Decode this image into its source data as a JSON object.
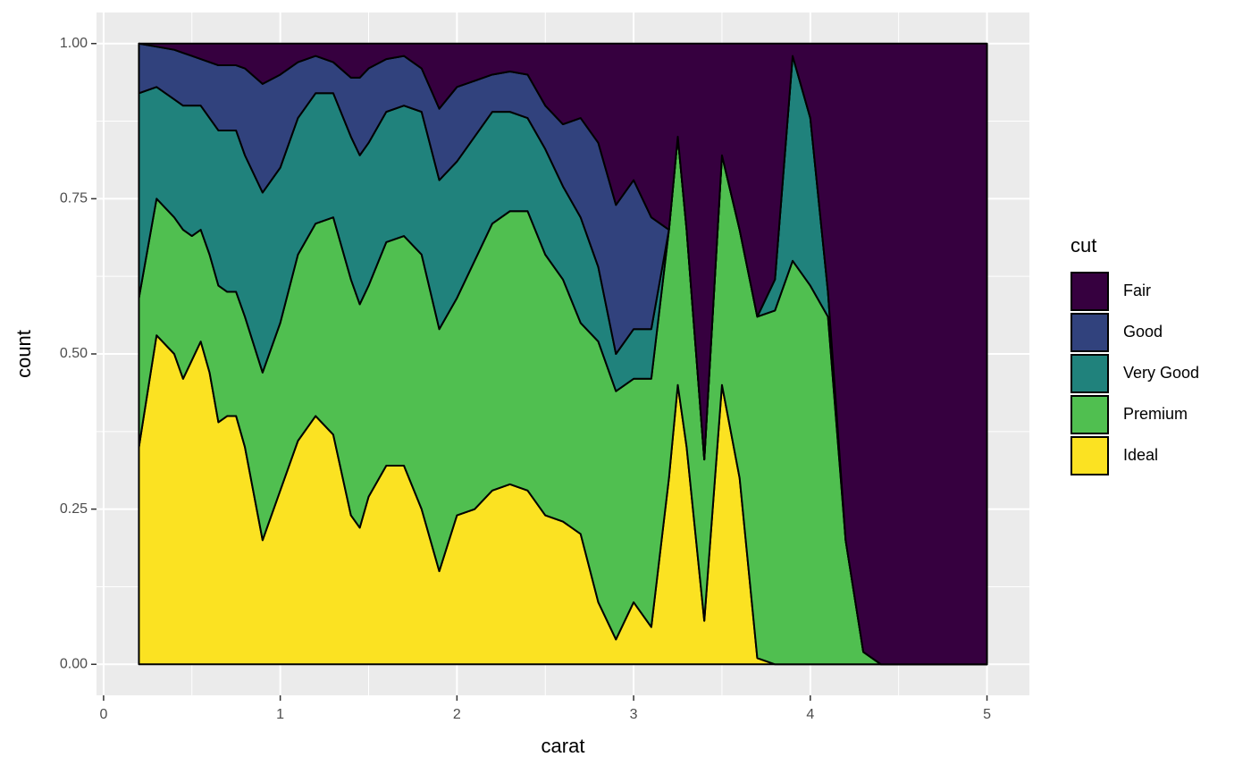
{
  "chart_data": {
    "type": "area",
    "x_label": "carat",
    "y_label": "count",
    "legend_title": "cut",
    "legend_position": "right",
    "grid": true,
    "x": [
      0.2,
      0.3,
      0.4,
      0.45,
      0.5,
      0.55,
      0.6,
      0.65,
      0.7,
      0.75,
      0.8,
      0.9,
      1.0,
      1.1,
      1.2,
      1.3,
      1.4,
      1.45,
      1.5,
      1.6,
      1.7,
      1.8,
      1.9,
      2.0,
      2.1,
      2.2,
      2.3,
      2.4,
      2.5,
      2.6,
      2.7,
      2.8,
      2.9,
      3.0,
      3.1,
      3.2,
      3.25,
      3.3,
      3.4,
      3.5,
      3.6,
      3.7,
      3.8,
      3.9,
      4.0,
      4.1,
      4.2,
      4.3,
      4.4,
      4.6,
      4.8,
      5.0
    ],
    "series": [
      {
        "name": "Fair",
        "color": "#36003f",
        "values": [
          0,
          0.005,
          0.01,
          0.015,
          0.02,
          0.025,
          0.03,
          0.035,
          0.035,
          0.035,
          0.04,
          0.065,
          0.05,
          0.03,
          0.02,
          0.03,
          0.055,
          0.055,
          0.04,
          0.025,
          0.02,
          0.04,
          0.105,
          0.07,
          0.06,
          0.05,
          0.045,
          0.05,
          0.1,
          0.13,
          0.12,
          0.16,
          0.26,
          0.22,
          0.28,
          0.3,
          0.15,
          0.3,
          0.67,
          0.18,
          0.3,
          0.44,
          0.38,
          0.02,
          0.12,
          0.4,
          0.8,
          0.98,
          1,
          1,
          1,
          1
        ]
      },
      {
        "name": "Good",
        "color": "#31427d",
        "values": [
          0.08,
          0.065,
          0.08,
          0.085,
          0.08,
          0.075,
          0.09,
          0.105,
          0.105,
          0.105,
          0.14,
          0.175,
          0.15,
          0.09,
          0.06,
          0.05,
          0.095,
          0.125,
          0.12,
          0.085,
          0.08,
          0.07,
          0.115,
          0.12,
          0.09,
          0.06,
          0.065,
          0.07,
          0.07,
          0.1,
          0.16,
          0.2,
          0.24,
          0.24,
          0.18,
          0,
          0,
          0,
          0,
          0,
          0,
          0,
          0,
          0,
          0,
          0,
          0,
          0,
          0,
          0,
          0,
          0
        ]
      },
      {
        "name": "Very Good",
        "color": "#20827c",
        "values": [
          0.33,
          0.18,
          0.19,
          0.2,
          0.21,
          0.2,
          0.22,
          0.25,
          0.26,
          0.26,
          0.26,
          0.29,
          0.25,
          0.22,
          0.21,
          0.2,
          0.23,
          0.24,
          0.23,
          0.21,
          0.21,
          0.23,
          0.24,
          0.22,
          0.2,
          0.18,
          0.16,
          0.15,
          0.17,
          0.15,
          0.17,
          0.12,
          0.06,
          0.08,
          0.08,
          0,
          0,
          0,
          0,
          0,
          0,
          0,
          0.05,
          0.33,
          0.27,
          0.04,
          0,
          0,
          0,
          0,
          0,
          0
        ]
      },
      {
        "name": "Premium",
        "color": "#50bf50",
        "values": [
          0.24,
          0.22,
          0.22,
          0.24,
          0.2,
          0.18,
          0.19,
          0.22,
          0.2,
          0.2,
          0.21,
          0.27,
          0.27,
          0.3,
          0.31,
          0.35,
          0.38,
          0.36,
          0.34,
          0.36,
          0.37,
          0.41,
          0.39,
          0.35,
          0.4,
          0.43,
          0.44,
          0.45,
          0.42,
          0.39,
          0.34,
          0.42,
          0.4,
          0.36,
          0.4,
          0.4,
          0.4,
          0.35,
          0.26,
          0.37,
          0.4,
          0.55,
          0.57,
          0.65,
          0.61,
          0.56,
          0.2,
          0.02,
          0,
          0,
          0,
          0
        ]
      },
      {
        "name": "Ideal",
        "color": "#fbe222",
        "values": [
          0.35,
          0.53,
          0.5,
          0.46,
          0.49,
          0.52,
          0.47,
          0.39,
          0.4,
          0.4,
          0.35,
          0.2,
          0.28,
          0.36,
          0.4,
          0.37,
          0.24,
          0.22,
          0.27,
          0.32,
          0.32,
          0.25,
          0.15,
          0.24,
          0.25,
          0.28,
          0.29,
          0.28,
          0.24,
          0.23,
          0.21,
          0.1,
          0.04,
          0.1,
          0.06,
          0.3,
          0.45,
          0.35,
          0.07,
          0.45,
          0.3,
          0.01,
          0,
          0,
          0,
          0,
          0,
          0,
          0,
          0,
          0,
          0
        ]
      }
    ],
    "xlim": [
      -0.04,
      5.24
    ],
    "xticks": [
      0,
      1,
      2,
      3,
      4,
      5
    ],
    "ylim": [
      -0.05,
      1.05
    ],
    "yticks": [
      {
        "value": 0,
        "label": "0.00"
      },
      {
        "value": 0.25,
        "label": "0.25"
      },
      {
        "value": 0.5,
        "label": "0.50"
      },
      {
        "value": 0.75,
        "label": "0.75"
      },
      {
        "value": 1,
        "label": "1.00"
      }
    ]
  }
}
